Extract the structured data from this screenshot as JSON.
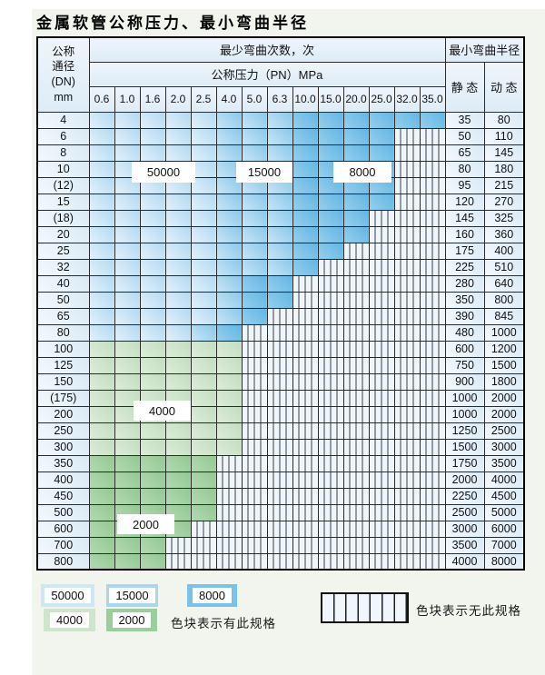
{
  "title": "金属软管公称压力、最小弯曲半径",
  "colors": {
    "cycles_50000_blue_light": "#cde7f6",
    "cycles_15000_blue_mid": "#a6d6f0",
    "cycles_8000_blue_dark": "#7bc2e8",
    "cycles_4000_green_light": "#cfe4cc",
    "cycles_2000_green_mid": "#9bce9d",
    "no_spec_hatch_bg": "#eef5fb",
    "page_background": "#f1f5ee"
  },
  "table": {
    "header": {
      "dn_lines": [
        "公称",
        "通径",
        "(DN)",
        "mm"
      ],
      "bend_cycles": "最少弯曲次数，次",
      "pressure": "公称压力（PN）MPa",
      "pressures": [
        "0.6",
        "1.0",
        "1.6",
        "2.0",
        "2.5",
        "4.0",
        "5.0",
        "6.3",
        "10.0",
        "15.0",
        "20.0",
        "25.0",
        "32.0",
        "35.0"
      ],
      "min_radius": "最小弯曲半径",
      "static": "静 态",
      "dynamic": "动 态"
    },
    "category_meaning": {
      "b1": "50000",
      "b2": "15000",
      "b3": "8000",
      "g1": "4000",
      "g2": "2000",
      "h": "无此规格"
    },
    "rows": [
      {
        "dn": "4",
        "static": "35",
        "dynamic": "80",
        "cats": [
          "b1",
          "b1",
          "b1",
          "b1",
          "b1",
          "b2",
          "b2",
          "b2",
          "b3",
          "b3",
          "b3",
          "b3",
          "b3",
          "b3"
        ]
      },
      {
        "dn": "6",
        "static": "50",
        "dynamic": "110",
        "cats": [
          "b1",
          "b1",
          "b1",
          "b1",
          "b1",
          "b2",
          "b2",
          "b2",
          "b3",
          "b3",
          "b3",
          "b3",
          "h",
          "h"
        ]
      },
      {
        "dn": "8",
        "static": "65",
        "dynamic": "145",
        "cats": [
          "b1",
          "b1",
          "b1",
          "b1",
          "b1",
          "b2",
          "b2",
          "b2",
          "b3",
          "b3",
          "b3",
          "b3",
          "h",
          "h"
        ]
      },
      {
        "dn": "10",
        "static": "80",
        "dynamic": "180",
        "cats": [
          "b1",
          "b1",
          "b1",
          "b1",
          "b1",
          "b2",
          "b2",
          "b2",
          "b3",
          "b3",
          "b3",
          "b3",
          "h",
          "h"
        ]
      },
      {
        "dn": "(12)",
        "static": "95",
        "dynamic": "215",
        "cats": [
          "b1",
          "b1",
          "b1",
          "b1",
          "b1",
          "b2",
          "b2",
          "b2",
          "b3",
          "b3",
          "b3",
          "b3",
          "h",
          "h"
        ]
      },
      {
        "dn": "15",
        "static": "120",
        "dynamic": "270",
        "cats": [
          "b1",
          "b1",
          "b1",
          "b1",
          "b1",
          "b2",
          "b2",
          "b2",
          "b3",
          "b3",
          "b3",
          "b3",
          "h",
          "h"
        ]
      },
      {
        "dn": "(18)",
        "static": "145",
        "dynamic": "325",
        "cats": [
          "b1",
          "b1",
          "b1",
          "b1",
          "b1",
          "b2",
          "b2",
          "b2",
          "b3",
          "b3",
          "b3",
          "h",
          "h",
          "h"
        ]
      },
      {
        "dn": "20",
        "static": "160",
        "dynamic": "360",
        "cats": [
          "b1",
          "b1",
          "b1",
          "b1",
          "b1",
          "b2",
          "b2",
          "b2",
          "b3",
          "b3",
          "b3",
          "h",
          "h",
          "h"
        ]
      },
      {
        "dn": "25",
        "static": "175",
        "dynamic": "400",
        "cats": [
          "b1",
          "b1",
          "b1",
          "b1",
          "b1",
          "b2",
          "b2",
          "b2",
          "b3",
          "b3",
          "h",
          "h",
          "h",
          "h"
        ]
      },
      {
        "dn": "32",
        "static": "225",
        "dynamic": "510",
        "cats": [
          "b1",
          "b1",
          "b1",
          "b1",
          "b1",
          "b2",
          "b2",
          "b2",
          "b3",
          "h",
          "h",
          "h",
          "h",
          "h"
        ]
      },
      {
        "dn": "40",
        "static": "280",
        "dynamic": "640",
        "cats": [
          "b1",
          "b1",
          "b1",
          "b1",
          "b1",
          "b2",
          "b3",
          "b3",
          "h",
          "h",
          "h",
          "h",
          "h",
          "h"
        ]
      },
      {
        "dn": "50",
        "static": "350",
        "dynamic": "800",
        "cats": [
          "b1",
          "b1",
          "b1",
          "b1",
          "b1",
          "b2",
          "b3",
          "b3",
          "h",
          "h",
          "h",
          "h",
          "h",
          "h"
        ]
      },
      {
        "dn": "65",
        "static": "390",
        "dynamic": "845",
        "cats": [
          "b1",
          "b1",
          "b1",
          "b1",
          "b1",
          "b2",
          "b3",
          "h",
          "h",
          "h",
          "h",
          "h",
          "h",
          "h"
        ]
      },
      {
        "dn": "80",
        "static": "480",
        "dynamic": "1000",
        "cats": [
          "b1",
          "b1",
          "b1",
          "b1",
          "b2",
          "b3",
          "h",
          "h",
          "h",
          "h",
          "h",
          "h",
          "h",
          "h"
        ]
      },
      {
        "dn": "100",
        "static": "600",
        "dynamic": "1200",
        "cats": [
          "g1",
          "g1",
          "g1",
          "g1",
          "g1",
          "g1",
          "h",
          "h",
          "h",
          "h",
          "h",
          "h",
          "h",
          "h"
        ]
      },
      {
        "dn": "125",
        "static": "750",
        "dynamic": "1500",
        "cats": [
          "g1",
          "g1",
          "g1",
          "g1",
          "g1",
          "g1",
          "h",
          "h",
          "h",
          "h",
          "h",
          "h",
          "h",
          "h"
        ]
      },
      {
        "dn": "150",
        "static": "900",
        "dynamic": "1800",
        "cats": [
          "g1",
          "g1",
          "g1",
          "g1",
          "g1",
          "g1",
          "h",
          "h",
          "h",
          "h",
          "h",
          "h",
          "h",
          "h"
        ]
      },
      {
        "dn": "(175)",
        "static": "1000",
        "dynamic": "2000",
        "cats": [
          "g1",
          "g1",
          "g1",
          "g1",
          "g1",
          "g1",
          "h",
          "h",
          "h",
          "h",
          "h",
          "h",
          "h",
          "h"
        ]
      },
      {
        "dn": "200",
        "static": "1000",
        "dynamic": "2000",
        "cats": [
          "g1",
          "g1",
          "g1",
          "g1",
          "g1",
          "g1",
          "h",
          "h",
          "h",
          "h",
          "h",
          "h",
          "h",
          "h"
        ]
      },
      {
        "dn": "250",
        "static": "1250",
        "dynamic": "2500",
        "cats": [
          "g1",
          "g1",
          "g1",
          "g1",
          "g1",
          "g1",
          "h",
          "h",
          "h",
          "h",
          "h",
          "h",
          "h",
          "h"
        ]
      },
      {
        "dn": "300",
        "static": "1500",
        "dynamic": "3000",
        "cats": [
          "g1",
          "g1",
          "g1",
          "g1",
          "g1",
          "g1",
          "h",
          "h",
          "h",
          "h",
          "h",
          "h",
          "h",
          "h"
        ]
      },
      {
        "dn": "350",
        "static": "1750",
        "dynamic": "3500",
        "cats": [
          "g2",
          "g2",
          "g2",
          "g2",
          "g2",
          "h",
          "h",
          "h",
          "h",
          "h",
          "h",
          "h",
          "h",
          "h"
        ]
      },
      {
        "dn": "400",
        "static": "2000",
        "dynamic": "4000",
        "cats": [
          "g2",
          "g2",
          "g2",
          "g2",
          "g2",
          "h",
          "h",
          "h",
          "h",
          "h",
          "h",
          "h",
          "h",
          "h"
        ]
      },
      {
        "dn": "450",
        "static": "2250",
        "dynamic": "4500",
        "cats": [
          "g2",
          "g2",
          "g2",
          "g2",
          "g2",
          "h",
          "h",
          "h",
          "h",
          "h",
          "h",
          "h",
          "h",
          "h"
        ]
      },
      {
        "dn": "500",
        "static": "2500",
        "dynamic": "5000",
        "cats": [
          "g2",
          "g2",
          "g2",
          "g2",
          "g2",
          "h",
          "h",
          "h",
          "h",
          "h",
          "h",
          "h",
          "h",
          "h"
        ]
      },
      {
        "dn": "600",
        "static": "3000",
        "dynamic": "6000",
        "cats": [
          "g2",
          "g2",
          "g2",
          "g2",
          "h",
          "h",
          "h",
          "h",
          "h",
          "h",
          "h",
          "h",
          "h",
          "h"
        ]
      },
      {
        "dn": "700",
        "static": "3500",
        "dynamic": "7000",
        "cats": [
          "g2",
          "g2",
          "g2",
          "h",
          "h",
          "h",
          "h",
          "h",
          "h",
          "h",
          "h",
          "h",
          "h",
          "h"
        ]
      },
      {
        "dn": "800",
        "static": "4000",
        "dynamic": "8000",
        "cats": [
          "g2",
          "g2",
          "g2",
          "h",
          "h",
          "h",
          "h",
          "h",
          "h",
          "h",
          "h",
          "h",
          "h",
          "h"
        ]
      }
    ]
  },
  "zone_labels": [
    {
      "text": "50000"
    },
    {
      "text": "15000"
    },
    {
      "text": "8000"
    },
    {
      "text": "4000"
    },
    {
      "text": "2000"
    }
  ],
  "legend": {
    "items": [
      {
        "value": "50000"
      },
      {
        "value": "15000"
      },
      {
        "value": "8000"
      },
      {
        "value": "4000"
      },
      {
        "value": "2000"
      }
    ],
    "has_spec": "色块表示有此规格",
    "no_spec": "色块表示无此规格"
  }
}
